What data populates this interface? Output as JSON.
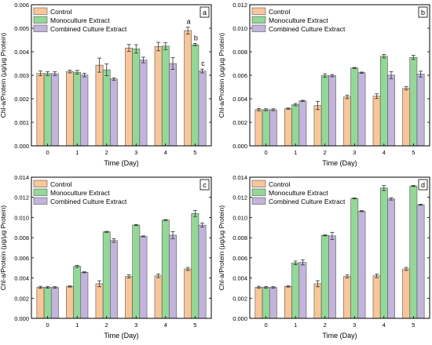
{
  "chart_data": [
    {
      "type": "bar",
      "panel_label": "a",
      "categories": [
        "0",
        "1",
        "2",
        "3",
        "4",
        "5"
      ],
      "series": [
        {
          "name": "Control",
          "values": [
            0.00308,
            0.00316,
            0.00343,
            0.00416,
            0.00422,
            0.0049
          ],
          "errors": [
            0.0001,
            6e-05,
            0.0003,
            0.00015,
            0.00018,
            0.00015
          ]
        },
        {
          "name": "Monoculture Extract",
          "values": [
            0.00307,
            0.00313,
            0.00323,
            0.00412,
            0.00424,
            0.0043
          ],
          "errors": [
            8e-05,
            8e-05,
            0.00025,
            0.00018,
            0.00015,
            5e-05
          ]
        },
        {
          "name": "Combined Culture Extract",
          "values": [
            0.00307,
            0.00301,
            0.00284,
            0.00365,
            0.0035,
            0.00318
          ],
          "errors": [
            8e-05,
            8e-05,
            5e-05,
            0.00012,
            0.00025,
            8e-05
          ]
        }
      ],
      "annotations": [
        {
          "text": "a",
          "x": "5",
          "series": "Control"
        },
        {
          "text": "b",
          "x": "5",
          "series": "Monoculture Extract"
        },
        {
          "text": "c",
          "x": "5",
          "series": "Combined Culture Extract"
        }
      ],
      "xlabel": "Time (Day)",
      "ylabel": "Chl-a/Protein (μg/μg Protein)",
      "ylim": [
        0,
        0.006
      ],
      "yticks": [
        "0.000",
        "0.001",
        "0.002",
        "0.003",
        "0.004",
        "0.005",
        "0.006"
      ],
      "legend": "top-left"
    },
    {
      "type": "bar",
      "panel_label": "b",
      "categories": [
        "0",
        "1",
        "2",
        "3",
        "4",
        "5"
      ],
      "series": [
        {
          "name": "Control",
          "values": [
            0.00308,
            0.00316,
            0.00343,
            0.00416,
            0.00422,
            0.0049
          ],
          "errors": [
            0.0001,
            6e-05,
            0.00035,
            0.00015,
            0.0002,
            0.00015
          ]
        },
        {
          "name": "Monoculture Extract",
          "values": [
            0.00307,
            0.0035,
            0.00597,
            0.00662,
            0.00762,
            0.00752
          ],
          "errors": [
            8e-05,
            0.0001,
            0.00015,
            5e-05,
            0.00015,
            0.00018
          ]
        },
        {
          "name": "Combined Culture Extract",
          "values": [
            0.00307,
            0.00382,
            0.00597,
            0.00622,
            0.00601,
            0.0061
          ],
          "errors": [
            8e-05,
            5e-05,
            0.0001,
            5e-05,
            0.0003,
            0.00025
          ]
        }
      ],
      "xlabel": "Time (Day)",
      "ylabel": "Chl-a/Protein (μg/μg Protein)",
      "ylim": [
        0,
        0.012
      ],
      "yticks": [
        "0.000",
        "0.002",
        "0.004",
        "0.006",
        "0.008",
        "0.010",
        "0.012"
      ],
      "legend": "top-left"
    },
    {
      "type": "bar",
      "panel_label": "c",
      "categories": [
        "0",
        "1",
        "2",
        "3",
        "4",
        "5"
      ],
      "series": [
        {
          "name": "Control",
          "values": [
            0.00308,
            0.00316,
            0.00343,
            0.00416,
            0.00422,
            0.0049
          ],
          "errors": [
            0.0001,
            6e-05,
            0.0003,
            0.00015,
            0.00018,
            0.00015
          ]
        },
        {
          "name": "Monoculture Extract",
          "values": [
            0.00307,
            0.00516,
            0.00858,
            0.00925,
            0.00975,
            0.0104
          ],
          "errors": [
            8e-05,
            0.0001,
            5e-05,
            5e-05,
            5e-05,
            0.0003
          ]
        },
        {
          "name": "Combined Culture Extract",
          "values": [
            0.00307,
            0.00457,
            0.00772,
            0.00813,
            0.00825,
            0.00925
          ],
          "errors": [
            8e-05,
            5e-05,
            0.00018,
            5e-05,
            0.00035,
            0.0002
          ]
        }
      ],
      "xlabel": "Time (Day)",
      "ylabel": "Chl-a/Protein (μg/μg Protein)",
      "ylim": [
        0,
        0.014
      ],
      "yticks": [
        "0.000",
        "0.002",
        "0.004",
        "0.006",
        "0.008",
        "0.010",
        "0.012",
        "0.014"
      ],
      "legend": "top-left"
    },
    {
      "type": "bar",
      "panel_label": "d",
      "categories": [
        "0",
        "1",
        "2",
        "3",
        "4",
        "5"
      ],
      "series": [
        {
          "name": "Control",
          "values": [
            0.00308,
            0.00316,
            0.00343,
            0.00416,
            0.00422,
            0.0049
          ],
          "errors": [
            0.0001,
            6e-05,
            0.0003,
            0.00015,
            0.00018,
            0.00015
          ]
        },
        {
          "name": "Monoculture Extract",
          "values": [
            0.00307,
            0.0055,
            0.00823,
            0.0119,
            0.01293,
            0.01313
          ],
          "errors": [
            8e-05,
            0.00018,
            5e-05,
            5e-05,
            0.00025,
            5e-05
          ]
        },
        {
          "name": "Combined Culture Extract",
          "values": [
            0.00307,
            0.00555,
            0.00818,
            0.01063,
            0.01185,
            0.01127
          ],
          "errors": [
            8e-05,
            0.00025,
            0.00035,
            5e-05,
            0.00012,
            5e-05
          ]
        }
      ],
      "xlabel": "Time (Day)",
      "ylabel": "Chl-a/Protein (μg/μg Protein)",
      "ylim": [
        0,
        0.014
      ],
      "yticks": [
        "0.000",
        "0.002",
        "0.004",
        "0.006",
        "0.008",
        "0.010",
        "0.012",
        "0.014"
      ],
      "legend": "top-left"
    }
  ],
  "colors": {
    "Control": "#f9c69a",
    "Monoculture Extract": "#93d896",
    "Combined Culture Extract": "#c2b4dc",
    "bar_edge": "#555555",
    "axis": "#000000"
  }
}
